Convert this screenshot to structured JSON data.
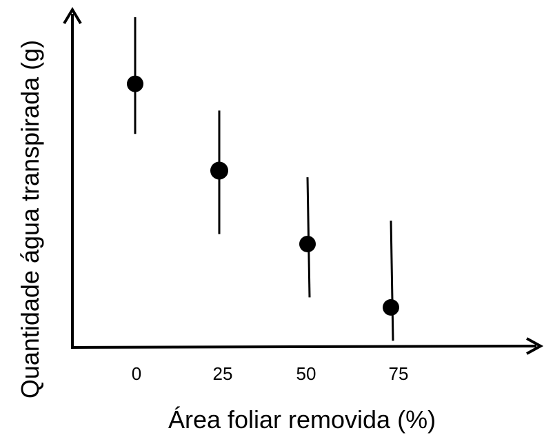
{
  "chart_data": {
    "type": "scatter",
    "title": "",
    "xlabel": "Área foliar removida (%)",
    "ylabel": "Quantidade água transpirada (g)",
    "categories": [
      "0",
      "25",
      "50",
      "75"
    ],
    "series": [
      {
        "points": [
          {
            "x": "0",
            "y": 0.79,
            "err_low": 0.64,
            "err_high": 0.99
          },
          {
            "x": "25",
            "y": 0.53,
            "err_low": 0.34,
            "err_high": 0.71
          },
          {
            "x": "50",
            "y": 0.31,
            "err_low": 0.15,
            "err_high": 0.51
          },
          {
            "x": "75",
            "y": 0.12,
            "err_low": 0.02,
            "err_high": 0.38
          }
        ]
      }
    ],
    "yticks": "none",
    "grid": false,
    "legend": "none",
    "colors": {
      "marker": "#000000",
      "axis": "#000000"
    }
  }
}
